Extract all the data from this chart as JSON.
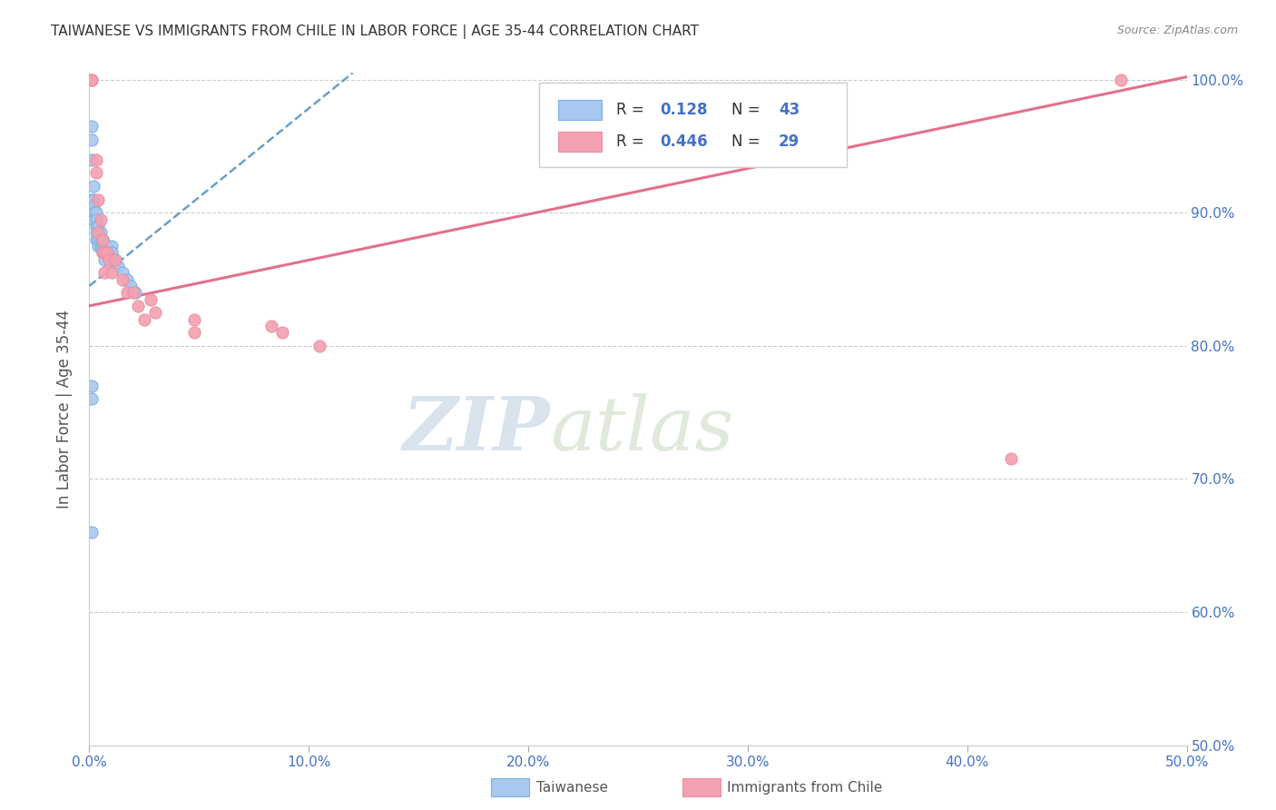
{
  "title": "TAIWANESE VS IMMIGRANTS FROM CHILE IN LABOR FORCE | AGE 35-44 CORRELATION CHART",
  "source": "Source: ZipAtlas.com",
  "ylabel": "In Labor Force | Age 35-44",
  "xlim": [
    0.0,
    0.5
  ],
  "ylim": [
    0.5,
    1.005
  ],
  "xticks": [
    0.0,
    0.1,
    0.2,
    0.3,
    0.4,
    0.5
  ],
  "xticklabels": [
    "0.0%",
    "10.0%",
    "20.0%",
    "30.0%",
    "40.0%",
    "50.0%"
  ],
  "yticks": [
    0.5,
    0.6,
    0.7,
    0.8,
    0.9,
    1.0
  ],
  "yticklabels": [
    "50.0%",
    "60.0%",
    "70.0%",
    "80.0%",
    "90.0%",
    "100.0%"
  ],
  "taiwanese_x": [
    0.001,
    0.001,
    0.001,
    0.001,
    0.001,
    0.002,
    0.002,
    0.002,
    0.002,
    0.002,
    0.003,
    0.003,
    0.003,
    0.003,
    0.003,
    0.004,
    0.004,
    0.004,
    0.005,
    0.005,
    0.005,
    0.006,
    0.006,
    0.006,
    0.007,
    0.007,
    0.007,
    0.008,
    0.008,
    0.009,
    0.009,
    0.01,
    0.01,
    0.011,
    0.012,
    0.013,
    0.015,
    0.017,
    0.019,
    0.021,
    0.001,
    0.001,
    0.001
  ],
  "taiwanese_y": [
    0.965,
    0.955,
    0.94,
    0.91,
    0.9,
    0.92,
    0.91,
    0.905,
    0.9,
    0.895,
    0.9,
    0.895,
    0.89,
    0.885,
    0.88,
    0.89,
    0.88,
    0.875,
    0.885,
    0.88,
    0.875,
    0.88,
    0.875,
    0.87,
    0.875,
    0.87,
    0.865,
    0.875,
    0.87,
    0.87,
    0.865,
    0.875,
    0.87,
    0.865,
    0.865,
    0.86,
    0.855,
    0.85,
    0.845,
    0.84,
    0.77,
    0.76,
    0.66
  ],
  "chile_x": [
    0.001,
    0.001,
    0.003,
    0.003,
    0.004,
    0.004,
    0.005,
    0.006,
    0.006,
    0.007,
    0.007,
    0.008,
    0.009,
    0.01,
    0.012,
    0.015,
    0.017,
    0.02,
    0.022,
    0.025,
    0.028,
    0.03,
    0.048,
    0.048,
    0.083,
    0.088,
    0.105,
    0.42,
    0.47
  ],
  "chile_y": [
    1.0,
    1.0,
    0.94,
    0.93,
    0.91,
    0.885,
    0.895,
    0.88,
    0.87,
    0.87,
    0.855,
    0.87,
    0.865,
    0.855,
    0.865,
    0.85,
    0.84,
    0.84,
    0.83,
    0.82,
    0.835,
    0.825,
    0.82,
    0.81,
    0.815,
    0.81,
    0.8,
    0.715,
    1.0
  ],
  "tw_trend_x0": 0.0,
  "tw_trend_y0": 0.845,
  "tw_trend_x1": 0.12,
  "tw_trend_y1": 1.005,
  "ch_trend_x0": 0.0,
  "ch_trend_y0": 0.83,
  "ch_trend_x1": 0.5,
  "ch_trend_y1": 1.002,
  "taiwanese_color": "#a8c8f0",
  "chile_color": "#f4a0b0",
  "taiwanese_line_color": "#5090c0",
  "chile_line_color": "#e06080",
  "taiwanese_scatter_edge": "#7ab0e0",
  "chile_scatter_edge": "#e890a0",
  "r_taiwanese": "0.128",
  "n_taiwanese": "43",
  "r_chile": "0.446",
  "n_chile": "29",
  "grid_color": "#cccccc",
  "title_color": "#333333",
  "axis_label_color": "#555555",
  "tick_color": "#4472c4",
  "source_color": "#888888",
  "legend_label1": "Taiwanese",
  "legend_label2": "Immigrants from Chile",
  "watermark_zip": "ZIP",
  "watermark_atlas": "atlas",
  "watermark_color_zip": "#b8cce0",
  "watermark_color_atlas": "#c8d8c0",
  "figwidth": 14.06,
  "figheight": 8.92
}
